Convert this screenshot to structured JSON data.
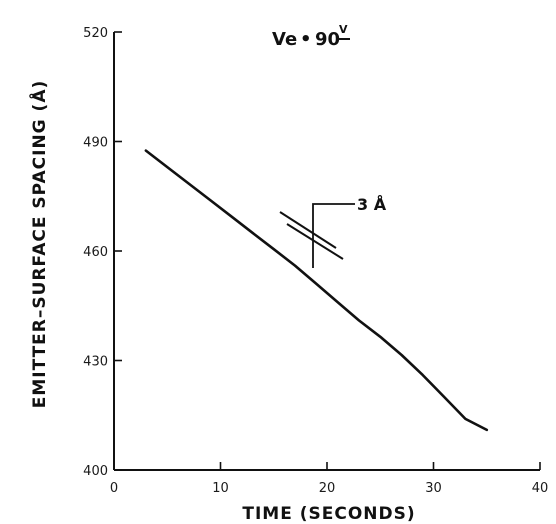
{
  "chart_data": {
    "type": "line",
    "title": "Ve = 90 V",
    "title_parts": {
      "lhs": "Ve",
      "eq": "•",
      "value": "90",
      "unit": "V"
    },
    "xlabel": "TIME (SECONDS)",
    "ylabel": "EMITTER–SURFACE SPACING (Å)",
    "xlim": [
      0,
      40
    ],
    "ylim": [
      400,
      520
    ],
    "xticks": [
      0,
      10,
      20,
      30,
      40
    ],
    "xtick_labels": [
      "0",
      "10",
      "20",
      "30",
      "40"
    ],
    "yticks": [
      400,
      430,
      460,
      490,
      520
    ],
    "ytick_labels": [
      "400",
      "430",
      "460",
      "490",
      "520"
    ],
    "grid": false,
    "series": [
      {
        "x": [
          3,
          5,
          7,
          9,
          11,
          13,
          15,
          17,
          19,
          21,
          23,
          25,
          27,
          29,
          31,
          33,
          35
        ],
        "y": [
          487.5,
          483,
          478.5,
          474,
          469.5,
          465,
          460.5,
          456,
          451,
          446,
          441,
          436.5,
          431.5,
          426,
          420,
          414,
          411
        ]
      }
    ],
    "annotations": [
      {
        "text": "3 Å",
        "x": 21.5,
        "y": 475
      }
    ]
  }
}
